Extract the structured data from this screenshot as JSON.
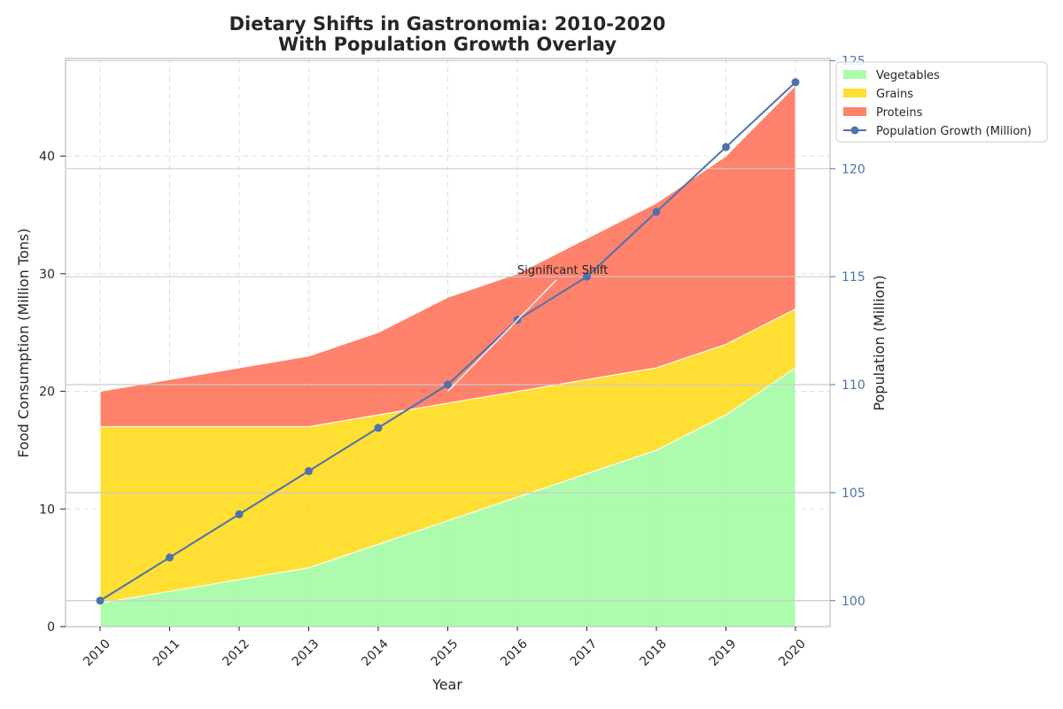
{
  "chart_data": {
    "type": "area",
    "title_lines": [
      "Dietary Shifts in Gastronomia: 2010-2020",
      "With Population Growth Overlay"
    ],
    "xlabel": "Year",
    "ylabel": "Food Consumption (Million Tons)",
    "y2label": "Population (Million)",
    "categories": [
      "2010",
      "2011",
      "2012",
      "2013",
      "2014",
      "2015",
      "2016",
      "2017",
      "2018",
      "2019",
      "2020"
    ],
    "ylim": [
      0,
      48.3
    ],
    "yticks": [
      "0",
      "10",
      "20",
      "30",
      "40"
    ],
    "y2lim": [
      98.8,
      125.1
    ],
    "y2ticks": [
      "100",
      "105",
      "110",
      "115",
      "120",
      "125"
    ],
    "stacked_series": [
      {
        "name": "Vegetables",
        "color": "#98fb98",
        "values": [
          2,
          3,
          4,
          5,
          7,
          9,
          11,
          13,
          15,
          18,
          22
        ]
      },
      {
        "name": "Grains",
        "color": "#ffd700",
        "values": [
          15,
          14,
          13,
          12,
          11,
          10,
          9,
          8,
          7,
          6,
          5
        ]
      },
      {
        "name": "Proteins",
        "color": "#ff6347",
        "values": [
          3,
          4,
          5,
          6,
          7,
          9,
          10,
          12,
          14,
          16,
          19
        ]
      }
    ],
    "line_series": {
      "name": "Population Growth (Million)",
      "color": "#4c72b0",
      "values": [
        100,
        102,
        104,
        106,
        108,
        110,
        113,
        115,
        118,
        121,
        124
      ]
    },
    "annotation": {
      "text": "Significant Shift",
      "x": "2015",
      "y": 20
    },
    "legend_position": "upper-right-outside"
  }
}
